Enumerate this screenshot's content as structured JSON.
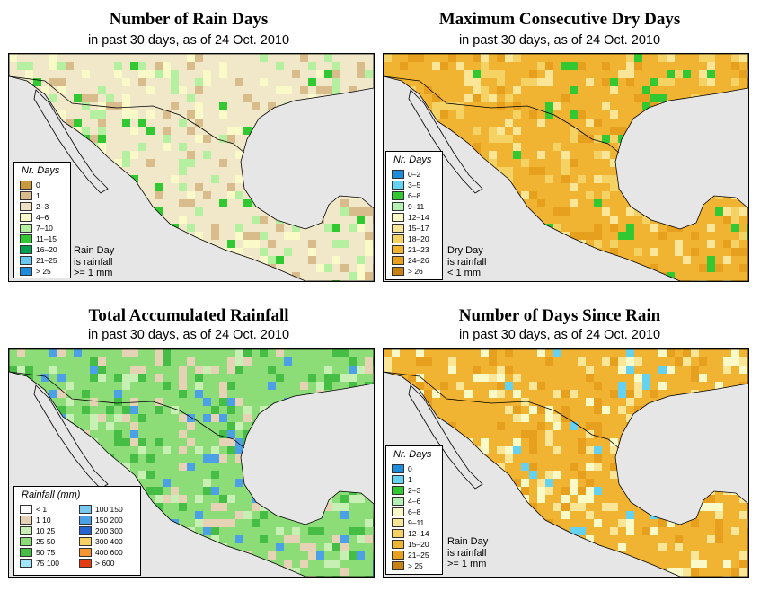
{
  "panels": [
    {
      "id": "rain-days",
      "title": "Number of Rain Days",
      "subtitle": "in past 30 days, as of  24 Oct. 2010",
      "legend_title": "Nr. Days",
      "legend": [
        {
          "label": "0",
          "color": "#c89a3c"
        },
        {
          "label": "1",
          "color": "#d8bc8c"
        },
        {
          "label": "2–3",
          "color": "#ede0c2"
        },
        {
          "label": "4–6",
          "color": "#fafac8"
        },
        {
          "label": "7–10",
          "color": "#b4f0a0"
        },
        {
          "label": "11–15",
          "color": "#32c832"
        },
        {
          "label": "16–20",
          "color": "#00a050"
        },
        {
          "label": "21–25",
          "color": "#64c8f0"
        },
        {
          "label": "> 25",
          "color": "#1e8cdc"
        }
      ],
      "note": [
        "Rain Day",
        "is rainfall",
        ">= 1 mm"
      ],
      "base": "#f0e8c8",
      "mix": [
        "#fafac8",
        "#d8bc8c",
        "#f0e8c8",
        "#b4f0a0"
      ],
      "accent": "#32c832"
    },
    {
      "id": "dry-days",
      "title": "Maximum Consecutive Dry Days",
      "subtitle": "in past 30 days, as of  24 Oct. 2010",
      "legend_title": "Nr. Days",
      "legend": [
        {
          "label": "0–2",
          "color": "#1e8cdc"
        },
        {
          "label": "3–5",
          "color": "#64d2f0"
        },
        {
          "label": "6–8",
          "color": "#32c832"
        },
        {
          "label": "9–11",
          "color": "#b4f0b4"
        },
        {
          "label": "12–14",
          "color": "#fafac8"
        },
        {
          "label": "15–17",
          "color": "#fae696"
        },
        {
          "label": "18–20",
          "color": "#f5d264"
        },
        {
          "label": "21–23",
          "color": "#f0b432"
        },
        {
          "label": "24–26",
          "color": "#e6a01e"
        },
        {
          "label": "> 26",
          "color": "#c88214"
        }
      ],
      "note": [
        "Dry Day",
        "is rainfall",
        "< 1 mm"
      ],
      "base": "#f0b432",
      "mix": [
        "#f0b432",
        "#e6a01e",
        "#f5d264",
        "#fae696"
      ],
      "accent": "#32c832"
    },
    {
      "id": "total-rainfall",
      "title": "Total Accumulated Rainfall",
      "subtitle": "in past 30 days, as of  24 Oct. 2010",
      "legend_title": "Rainfall (mm)",
      "legend": [
        {
          "label": "< 1",
          "color": "#ffffff"
        },
        {
          "label": "1    10",
          "color": "#e6d2b4"
        },
        {
          "label": "10    25",
          "color": "#c8f0b4"
        },
        {
          "label": "25    50",
          "color": "#8cdc78"
        },
        {
          "label": "50    75",
          "color": "#46be46"
        },
        {
          "label": "75   100",
          "color": "#a0e6fa"
        },
        {
          "label": "100   150",
          "color": "#78c8f0"
        },
        {
          "label": "150   200",
          "color": "#4ca0e6"
        },
        {
          "label": "200   300",
          "color": "#2864d2"
        },
        {
          "label": "300   400",
          "color": "#fad264"
        },
        {
          "label": "400   600",
          "color": "#f59632"
        },
        {
          "label": "> 600",
          "color": "#e63c14"
        }
      ],
      "note": [],
      "base": "#8cdc78",
      "mix": [
        "#8cdc78",
        "#c8f0b4",
        "#e6d2b4",
        "#46be46"
      ],
      "accent": "#4ca0e6"
    },
    {
      "id": "days-since-rain",
      "title": "Number of Days Since Rain",
      "subtitle": "in past 30 days, as of  24 Oct. 2010",
      "legend_title": "Nr. Days",
      "legend": [
        {
          "label": "0",
          "color": "#1e8cdc"
        },
        {
          "label": "1",
          "color": "#64d2f0"
        },
        {
          "label": "2–3",
          "color": "#32c832"
        },
        {
          "label": "4–6",
          "color": "#b4f0b4"
        },
        {
          "label": "6–8",
          "color": "#fafac8"
        },
        {
          "label": "9–11",
          "color": "#fae696"
        },
        {
          "label": "12–14",
          "color": "#f5d264"
        },
        {
          "label": "15–20",
          "color": "#f0b432"
        },
        {
          "label": "21–25",
          "color": "#e6a01e"
        },
        {
          "label": "> 25",
          "color": "#c88214"
        }
      ],
      "note": [
        "Rain Day",
        "is rainfall",
        ">= 1 mm"
      ],
      "base": "#f0b432",
      "mix": [
        "#f0b432",
        "#fae696",
        "#e6a01e",
        "#fafac8"
      ],
      "accent": "#64d2f0"
    }
  ],
  "colors": {
    "ocean": "#e6e6e6",
    "border": "#000000"
  }
}
